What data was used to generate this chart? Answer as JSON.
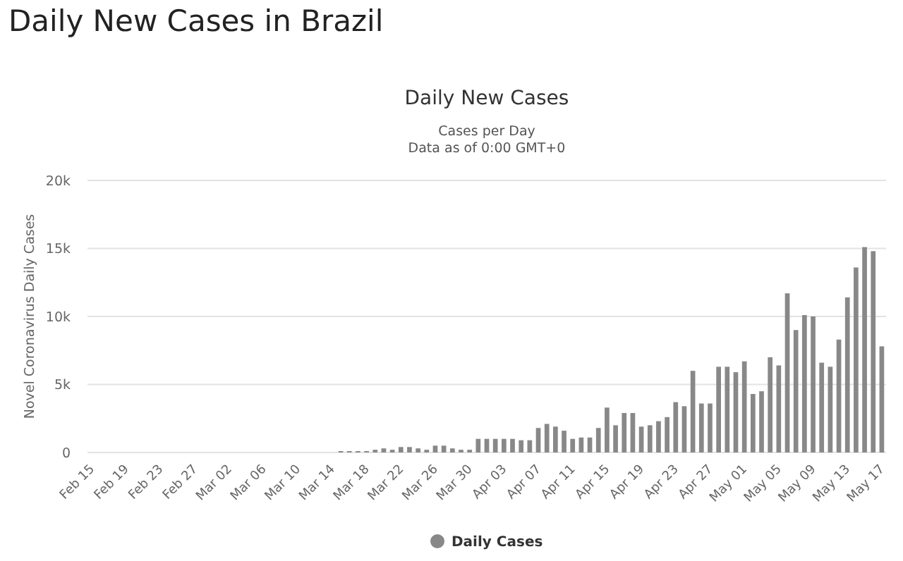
{
  "chart_data": {
    "type": "bar",
    "title": "Daily New Cases in Brazil",
    "subtitle": "Daily New Cases",
    "annotations": [
      "Cases per Day",
      "Data as of 0:00 GMT+0"
    ],
    "ylabel": "Novel Coronavirus Daily Cases",
    "categories": [
      "Feb 15",
      null,
      null,
      null,
      "Feb 19",
      null,
      null,
      null,
      "Feb 23",
      null,
      null,
      null,
      "Feb 27",
      null,
      null,
      null,
      "Mar 02",
      null,
      null,
      null,
      "Mar 06",
      null,
      null,
      null,
      "Mar 10",
      null,
      null,
      null,
      "Mar 14",
      null,
      null,
      null,
      "Mar 18",
      null,
      null,
      null,
      "Mar 22",
      null,
      null,
      null,
      "Mar 26",
      null,
      null,
      null,
      "Mar 30",
      null,
      null,
      null,
      "Apr 03",
      null,
      null,
      null,
      "Apr 07",
      null,
      null,
      null,
      "Apr 11",
      null,
      null,
      null,
      "Apr 15",
      null,
      null,
      null,
      "Apr 19",
      null,
      null,
      null,
      "Apr 23",
      null,
      null,
      null,
      "Apr 27",
      null,
      null,
      null,
      "May 01",
      null,
      null,
      null,
      "May 05",
      null,
      null,
      null,
      "May 09",
      null,
      null,
      null,
      "May 13",
      null,
      null,
      null,
      "May 17"
    ],
    "series": [
      {
        "name": "Daily Cases",
        "color": "#888888",
        "values": [
          0,
          0,
          0,
          0,
          0,
          0,
          0,
          0,
          0,
          0,
          0,
          0,
          0,
          0,
          0,
          0,
          0,
          0,
          0,
          0,
          0,
          0,
          0,
          0,
          0,
          0,
          0,
          0,
          0,
          100,
          100,
          100,
          100,
          200,
          300,
          200,
          400,
          400,
          300,
          200,
          500,
          500,
          300,
          200,
          200,
          1000,
          1000,
          1000,
          1000,
          1000,
          900,
          900,
          1800,
          2100,
          1900,
          1600,
          1000,
          1100,
          1100,
          1800,
          3300,
          2000,
          2900,
          2900,
          1900,
          2000,
          2300,
          2600,
          3700,
          3400,
          6000,
          3600,
          3600,
          6300,
          6300,
          5900,
          6700,
          4300,
          4500,
          7000,
          6400,
          11700,
          9000,
          10100,
          10000,
          6600,
          6300,
          8300,
          11400,
          13600,
          15100,
          14800,
          7800
        ]
      }
    ],
    "ylim": [
      0,
      20000
    ],
    "yticks": [
      0,
      {
        "value": 5000,
        "label": "5k"
      },
      {
        "value": 10000,
        "label": "10k"
      },
      {
        "value": 15000,
        "label": "15k"
      },
      {
        "value": 20000,
        "label": "20k"
      }
    ],
    "grid": "y",
    "legend": "bottom",
    "marker": "circle"
  }
}
